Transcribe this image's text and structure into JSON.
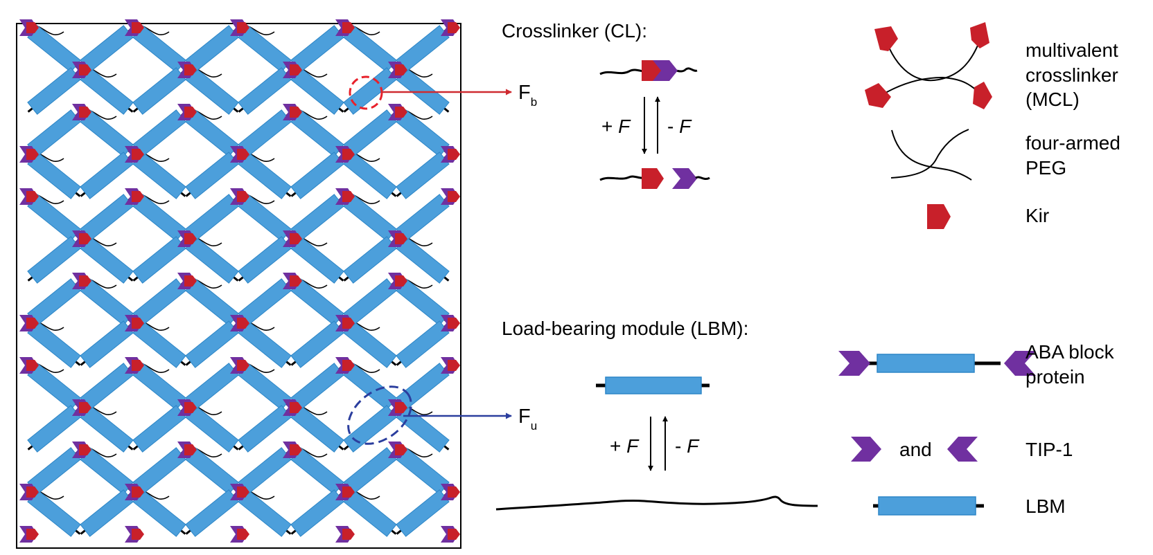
{
  "colors": {
    "rod_fill": "#4c9fdb",
    "rod_stroke": "#2d86c7",
    "kir_red": "#c8202a",
    "tip_purple": "#7030a0",
    "highlight_red": "#e8212b",
    "highlight_blue": "#2b3e9e",
    "line_black": "#000000"
  },
  "icons": [
    "kir-red-pentagon",
    "tip1-purple-chevron",
    "lbm-blue-rod"
  ],
  "network": {
    "rod_rows": 6,
    "rod_cols": 4
  },
  "callouts": {
    "fb": {
      "base": "F",
      "sub": "b"
    },
    "fu": {
      "base": "F",
      "sub": "u"
    }
  },
  "crosslinker": {
    "title": "Crosslinker (CL):",
    "plus_f_sign": "+",
    "minus_f_sign": "-",
    "force_symbol": "F"
  },
  "lbm": {
    "title": "Load-bearing module (LBM):",
    "plus_f_sign": "+",
    "minus_f_sign": "-",
    "force_symbol": "F"
  },
  "legend": {
    "mcl": [
      "multivalent",
      "crosslinker",
      "(MCL)"
    ],
    "peg": [
      "four-armed",
      "PEG"
    ],
    "kir": "Kir",
    "aba": [
      "ABA block",
      "protein"
    ],
    "and_text": "and",
    "tip": "TIP-1",
    "lbm": "LBM"
  }
}
